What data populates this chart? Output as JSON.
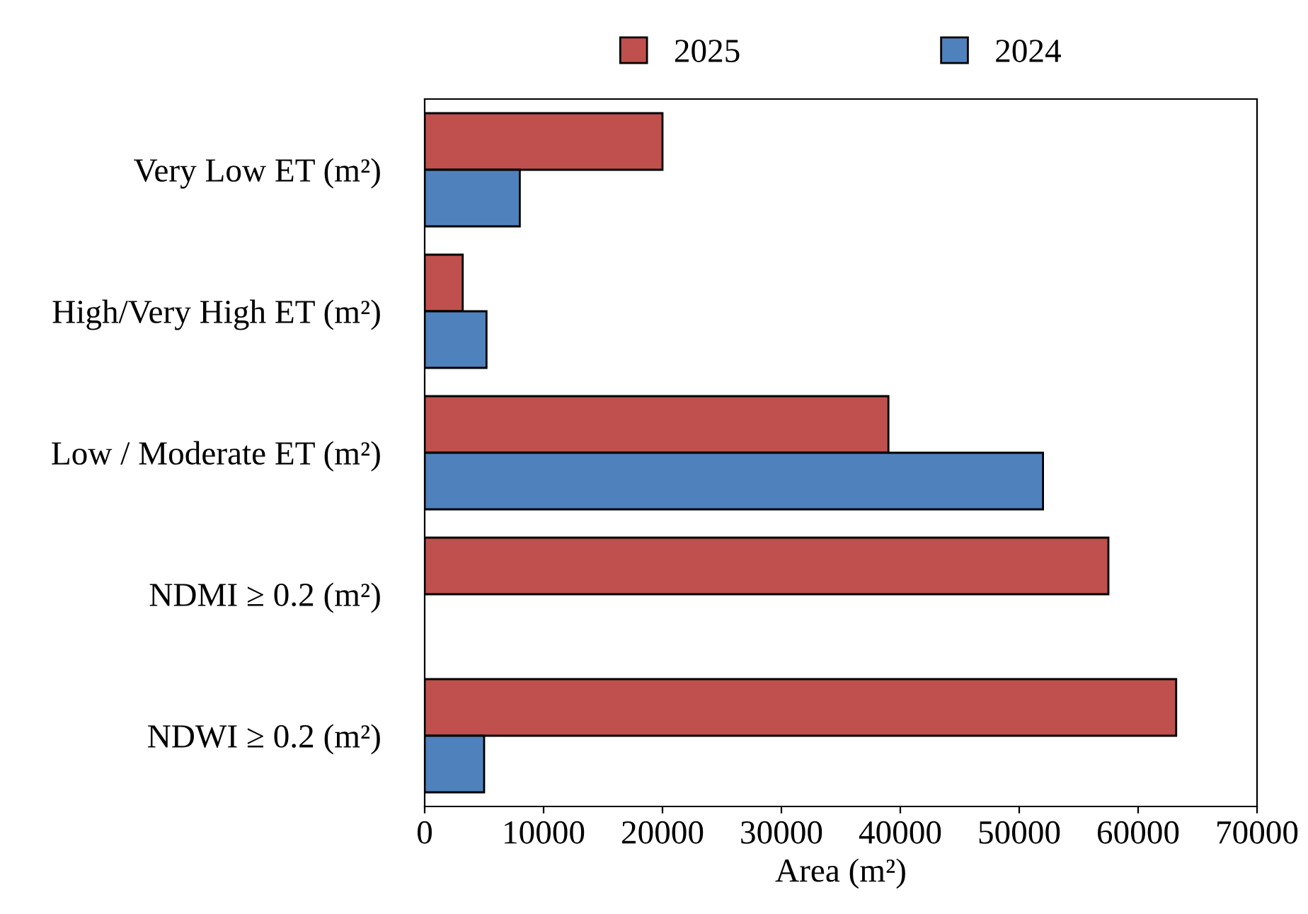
{
  "chart_data": {
    "type": "bar",
    "orientation": "horizontal",
    "xlabel": "Area (m²)",
    "categories": [
      "Very Low ET (m²)",
      "High/Very High ET (m²)",
      "Low / Moderate ET (m²)",
      "NDMI ≥ 0.2 (m²)",
      "NDWI ≥ 0.2 (m²)"
    ],
    "series": [
      {
        "name": "2025",
        "color": "#c0504d",
        "values": [
          20000,
          3200,
          39000,
          57500,
          63200
        ]
      },
      {
        "name": "2024",
        "color": "#4f81bd",
        "values": [
          8000,
          5200,
          52000,
          null,
          5000
        ]
      }
    ],
    "xlim": [
      0,
      70000
    ],
    "xticks": [
      0,
      10000,
      20000,
      30000,
      40000,
      50000,
      60000,
      70000
    ],
    "grid": false,
    "legend": "top"
  }
}
